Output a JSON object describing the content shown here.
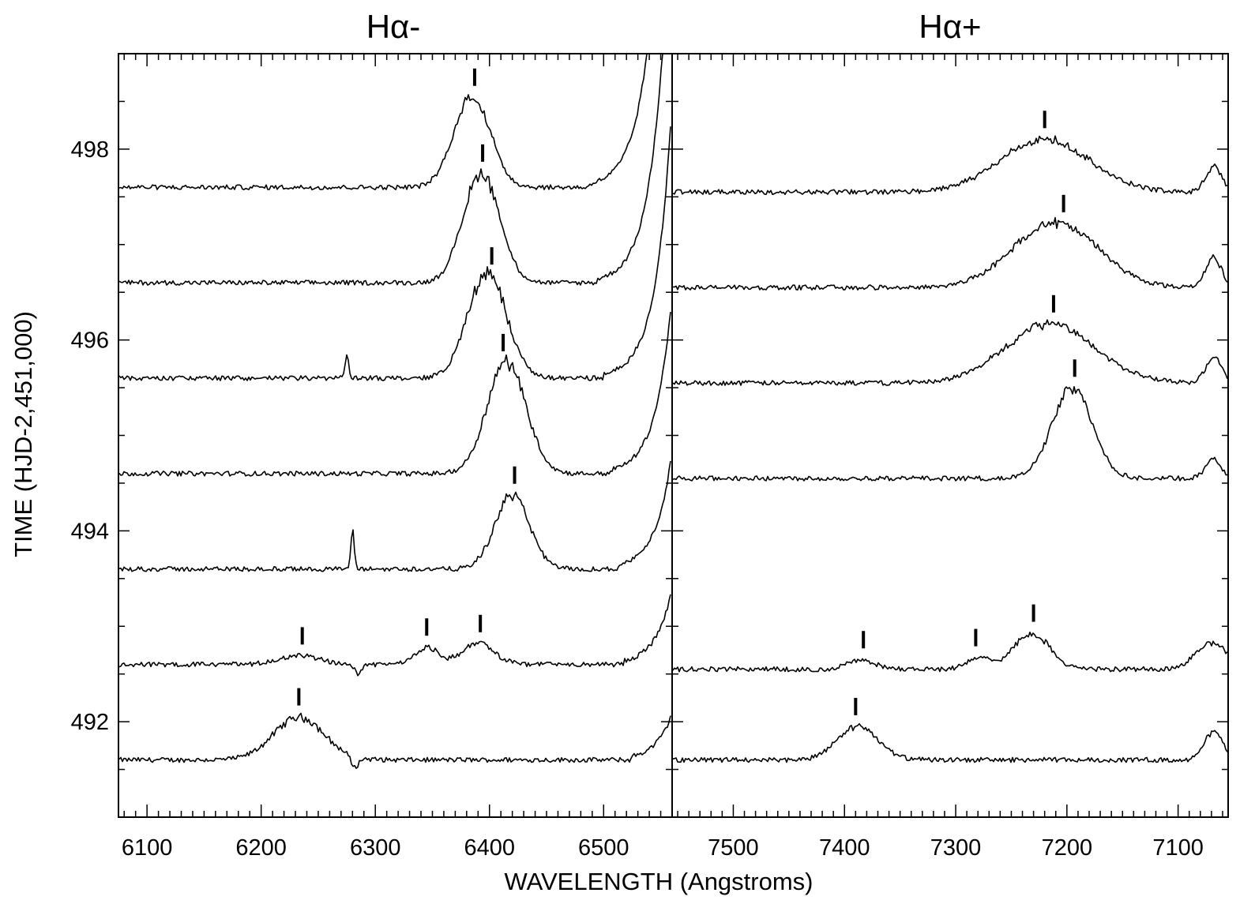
{
  "chart_data": {
    "type": "line",
    "xlabel": "WAVELENGTH (Angstroms)",
    "ylabel": "TIME (HJD-2,451,000)",
    "ylim": [
      491.0,
      499.0
    ],
    "yticks": [
      "492",
      "494",
      "496",
      "498"
    ],
    "yticks_values": [
      492,
      494,
      496,
      498
    ],
    "panels": [
      {
        "id": "left",
        "title": "Hα-",
        "xlim": [
          6075,
          6560
        ],
        "x_reversed": false,
        "xticks": [
          "6100",
          "6200",
          "6300",
          "6400",
          "6500"
        ],
        "xticks_values": [
          6100,
          6200,
          6300,
          6400,
          6500
        ],
        "spectra": [
          {
            "time": 491.6,
            "features": [
              {
                "center": 6233,
                "height": 0.45,
                "width": 22
              },
              {
                "center": 6282,
                "height": -0.12,
                "width": 3
              }
            ],
            "markers": [
              6233
            ],
            "rise": 6525
          },
          {
            "time": 492.6,
            "features": [
              {
                "center": 6233,
                "height": 0.09,
                "width": 18
              },
              {
                "center": 6345,
                "height": 0.18,
                "width": 10
              },
              {
                "center": 6390,
                "height": 0.22,
                "width": 14
              },
              {
                "center": 6285,
                "height": -0.1,
                "width": 3
              }
            ],
            "markers": [
              6236,
              6345,
              6392
            ],
            "rise": 6518
          },
          {
            "time": 493.6,
            "features": [
              {
                "center": 6420,
                "height": 0.78,
                "width": 15
              },
              {
                "center": 6280,
                "height": 0.4,
                "width": 1.5
              }
            ],
            "markers": [
              6422
            ],
            "rise": 6512
          },
          {
            "time": 494.6,
            "features": [
              {
                "center": 6415,
                "height": 1.18,
                "width": 17
              }
            ],
            "markers": [
              6412
            ],
            "rise": 6506
          },
          {
            "time": 495.6,
            "features": [
              {
                "center": 6398,
                "height": 1.1,
                "width": 17
              },
              {
                "center": 6275,
                "height": 0.25,
                "width": 1.5
              }
            ],
            "markers": [
              6402
            ],
            "rise": 6500
          },
          {
            "time": 496.6,
            "features": [
              {
                "center": 6393,
                "height": 1.15,
                "width": 16
              }
            ],
            "markers": [
              6394
            ],
            "rise": 6494
          },
          {
            "time": 497.6,
            "features": [
              {
                "center": 6385,
                "height": 0.95,
                "width": 16
              }
            ],
            "markers": [
              6387
            ],
            "rise": 6488
          }
        ]
      },
      {
        "id": "right",
        "title": "Hα+",
        "xlim": [
          7555,
          7055
        ],
        "x_reversed": true,
        "xticks": [
          "7500",
          "7400",
          "7300",
          "7200",
          "7100"
        ],
        "xticks_values": [
          7500,
          7400,
          7300,
          7200,
          7100
        ],
        "spectra": [
          {
            "time": 491.6,
            "features": [
              {
                "center": 7388,
                "height": 0.35,
                "width": 18
              },
              {
                "center": 7068,
                "height": 0.3,
                "width": 8
              }
            ],
            "markers": [
              7390
            ]
          },
          {
            "time": 492.55,
            "features": [
              {
                "center": 7385,
                "height": 0.1,
                "width": 12
              },
              {
                "center": 7280,
                "height": 0.12,
                "width": 10
              },
              {
                "center": 7232,
                "height": 0.38,
                "width": 16
              },
              {
                "center": 7070,
                "height": 0.28,
                "width": 14
              }
            ],
            "markers": [
              7383,
              7282,
              7230
            ]
          },
          {
            "time": 494.55,
            "features": [
              {
                "center": 7195,
                "height": 0.95,
                "width": 18
              },
              {
                "center": 7068,
                "height": 0.2,
                "width": 7
              }
            ],
            "markers": [
              7193
            ]
          },
          {
            "time": 495.55,
            "features": [
              {
                "center": 7215,
                "height": 0.62,
                "width": 40
              },
              {
                "center": 7068,
                "height": 0.28,
                "width": 7
              }
            ],
            "markers": [
              7212
            ]
          },
          {
            "time": 496.55,
            "features": [
              {
                "center": 7210,
                "height": 0.68,
                "width": 38
              },
              {
                "center": 7068,
                "height": 0.32,
                "width": 7
              }
            ],
            "markers": [
              7203
            ]
          },
          {
            "time": 497.55,
            "features": [
              {
                "center": 7220,
                "height": 0.55,
                "width": 40
              },
              {
                "center": 7068,
                "height": 0.27,
                "width": 7
              }
            ],
            "markers": [
              7220
            ]
          }
        ]
      }
    ]
  }
}
